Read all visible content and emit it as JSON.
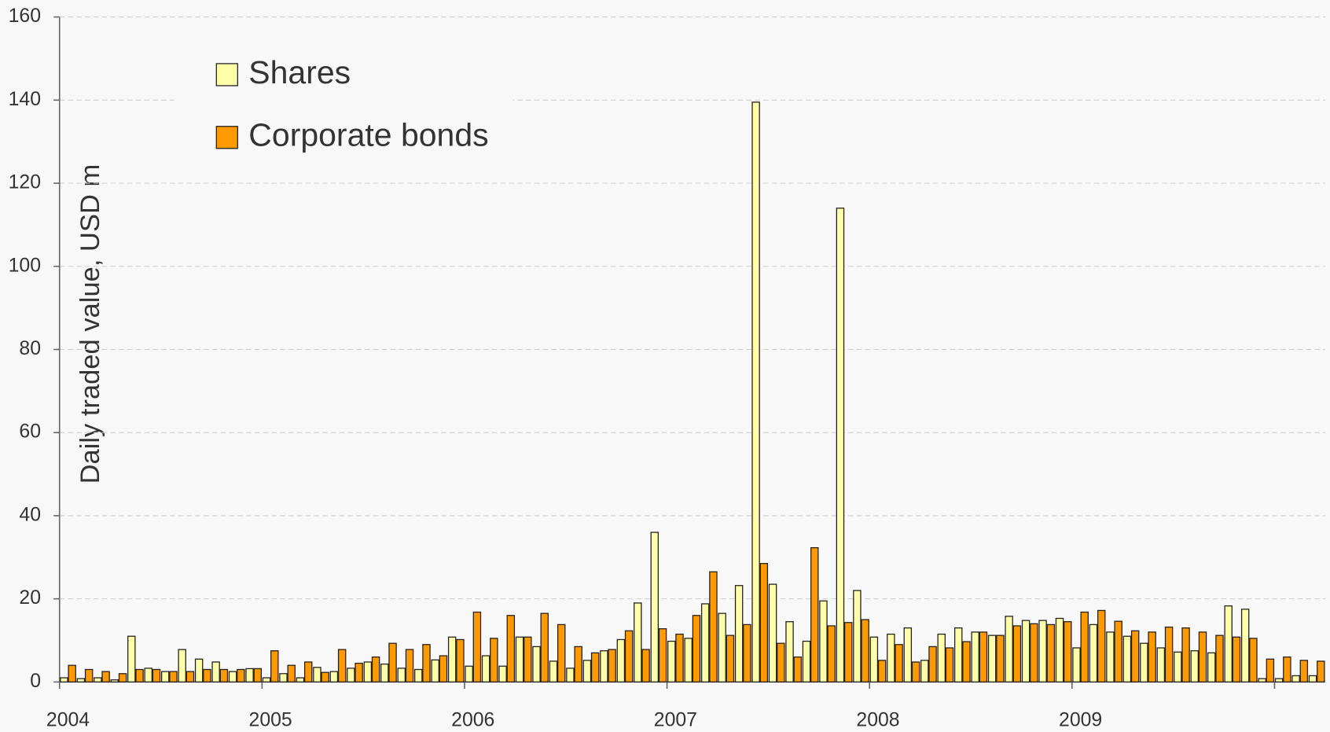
{
  "chart_data": {
    "type": "bar",
    "y_label": "Daily traded value, USD m",
    "categories": [
      "2004",
      null,
      null,
      null,
      null,
      null,
      null,
      null,
      null,
      null,
      null,
      null,
      "2005",
      null,
      null,
      null,
      null,
      null,
      null,
      null,
      null,
      null,
      null,
      null,
      "2006",
      null,
      null,
      null,
      null,
      null,
      null,
      null,
      null,
      null,
      null,
      null,
      "2007",
      null,
      null,
      null,
      null,
      null,
      null,
      null,
      null,
      null,
      null,
      null,
      "2008",
      null,
      null,
      null,
      null,
      null,
      null,
      null,
      null,
      null,
      null,
      null,
      "2009",
      null,
      null,
      null,
      null,
      null,
      null,
      null,
      null,
      null,
      null,
      null,
      null,
      null,
      null
    ],
    "series": [
      {
        "name": "Shares",
        "color": "#ffffaa",
        "values": [
          1,
          0.8,
          1,
          0.5,
          11,
          3.3,
          2.5,
          7.8,
          5.5,
          4.8,
          2.5,
          3.2,
          1,
          2,
          1,
          3.5,
          2.5,
          3.3,
          4.8,
          4.3,
          3.3,
          3,
          5.3,
          10.8,
          3.8,
          6.3,
          3.8,
          10.8,
          8.5,
          5,
          3.3,
          5.2,
          7.5,
          10.2,
          19,
          36,
          9.8,
          10.5,
          18.8,
          16.5,
          23.2,
          139.5,
          23.5,
          14.5,
          9.8,
          19.5,
          114,
          22,
          10.8,
          11.5,
          13,
          5.2,
          11.5,
          13,
          12,
          11.2,
          15.8,
          14.8,
          14.8,
          15.3,
          8.2,
          13.8,
          12,
          11,
          9.3,
          8.2,
          7.2,
          7.5,
          7,
          18.3,
          17.5,
          0.8,
          0.8,
          1.5,
          1.5
        ]
      },
      {
        "name": "Corporate bonds",
        "color": "#ff9900",
        "values": [
          4,
          3,
          2.5,
          2,
          3,
          3,
          2.5,
          2.5,
          3,
          3,
          3,
          3.2,
          7.5,
          4,
          4.8,
          2.3,
          7.8,
          4.5,
          6,
          9.3,
          7.8,
          9,
          6.3,
          10.2,
          16.8,
          10.5,
          16,
          10.8,
          16.5,
          13.8,
          8.5,
          7,
          7.8,
          12.3,
          7.8,
          12.8,
          11.5,
          16,
          26.5,
          11.2,
          13.8,
          28.5,
          9.3,
          6,
          32.3,
          13.5,
          14.3,
          15,
          5.2,
          9,
          4.8,
          8.5,
          8.2,
          9.7,
          12,
          11.2,
          13.5,
          14,
          13.8,
          14.5,
          16.8,
          17.2,
          14.6,
          12.3,
          12,
          13.2,
          13,
          12,
          11.2,
          10.8,
          10.5,
          5.5,
          6,
          5.2,
          5
        ]
      }
    ],
    "ylim": [
      0,
      160
    ],
    "yticks": [
      0,
      20,
      40,
      60,
      80,
      100,
      120,
      140,
      160
    ],
    "grid": true,
    "legend": "upper left"
  }
}
